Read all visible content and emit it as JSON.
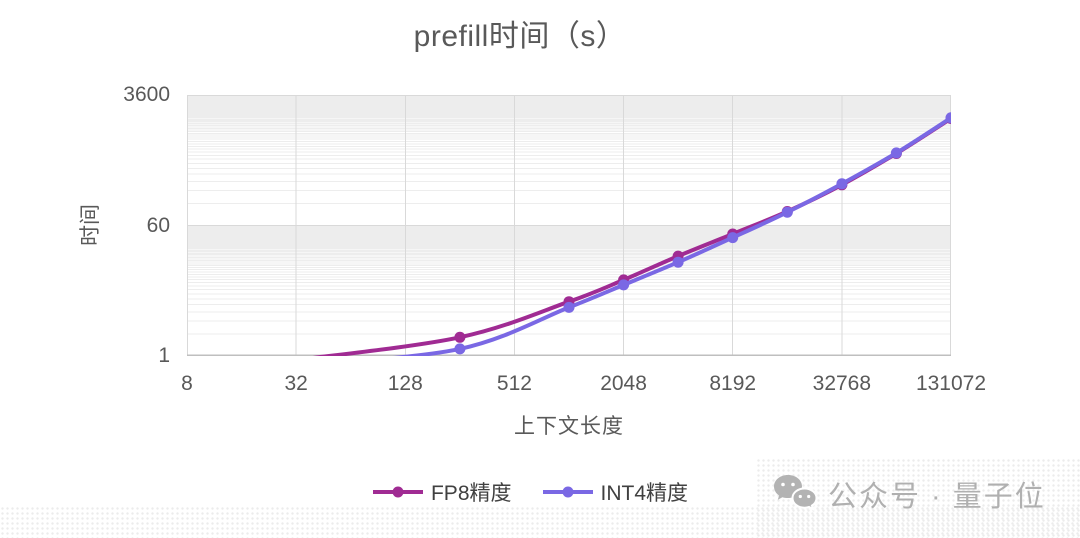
{
  "chart_data": {
    "type": "line",
    "title": "prefill时间（s）",
    "x_title": "上下文长度",
    "y_title": "时间",
    "x_scale": "log2",
    "y_scale": "log60",
    "x_range": [
      8,
      131072
    ],
    "y_range": [
      1,
      3600
    ],
    "x_ticks": [
      8,
      32,
      128,
      512,
      2048,
      8192,
      32768,
      131072
    ],
    "x_tick_labels": [
      "8",
      "32",
      "128",
      "512",
      "2048",
      "8192",
      "32768",
      "131072"
    ],
    "y_ticks": [
      3600,
      60,
      1
    ],
    "y_tick_labels": [
      "3600",
      "60",
      "1"
    ],
    "grid": {
      "major_color": "#D9D9D9",
      "minor_color": "#EDEDED",
      "axis_color": "#BFBFBF"
    },
    "legend_position": "bottom-center",
    "x": [
      256,
      1024,
      2048,
      4096,
      8192,
      16384,
      32768,
      65536,
      131072
    ],
    "series": [
      {
        "name": "FP8精度",
        "color": "#A02B93",
        "values": [
          1.8,
          5.5,
          10.9,
          23,
          46,
          93,
          215,
          575,
          1720
        ],
        "lead_in": {
          "x": 32,
          "value": 0.88
        }
      },
      {
        "name": "INT4精度",
        "color": "#7A68E4",
        "values": [
          1.25,
          4.6,
          9.3,
          19,
          41,
          91,
          222,
          585,
          1760
        ],
        "lead_in": {
          "x": 32,
          "value": 0.74
        }
      }
    ]
  },
  "watermark": {
    "text": "公众号 · 量子位",
    "icon": "wechat-icon",
    "color": "#b0b0b0"
  },
  "colors": {
    "background": "#FFFFFF",
    "title_text": "#595959",
    "tick_text": "#595959",
    "legend_text": "#404040"
  }
}
